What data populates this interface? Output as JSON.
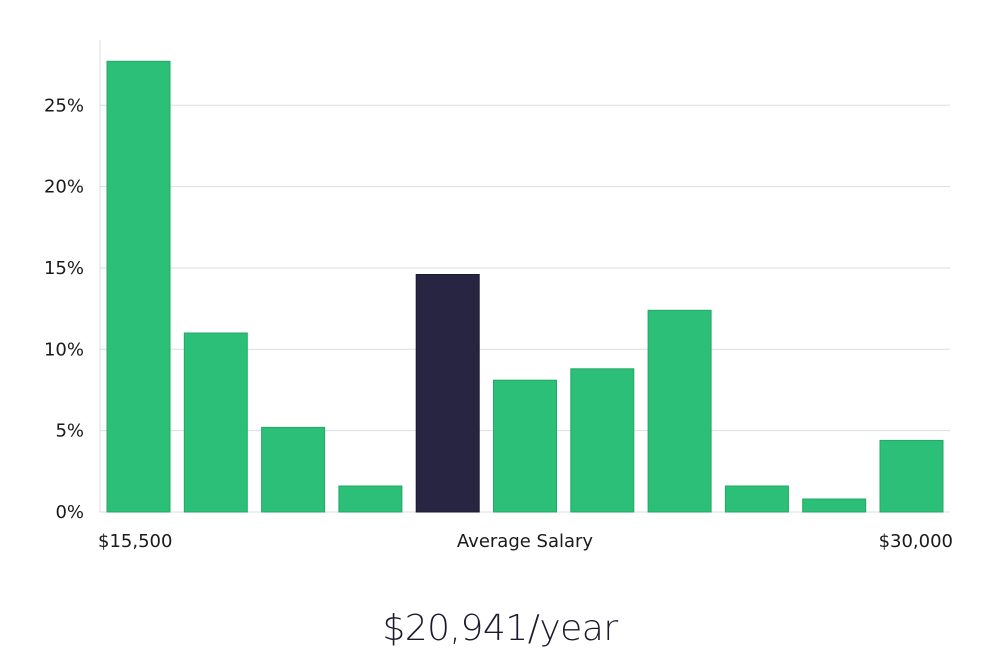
{
  "colors": {
    "bar": "#2bbf78",
    "bar_highlight": "#282543",
    "grid": "#dcdde3"
  },
  "chart_data": {
    "type": "bar",
    "categories": [
      "1",
      "2",
      "3",
      "4",
      "5",
      "6",
      "7",
      "8",
      "9",
      "10",
      "11"
    ],
    "values": [
      27.7,
      11.0,
      5.2,
      1.6,
      14.6,
      8.1,
      8.8,
      12.4,
      1.6,
      0.8,
      4.4
    ],
    "highlight_index": 4,
    "y_unit": "%",
    "ylim": [
      0,
      30
    ],
    "yticks": [
      0,
      5,
      10,
      15,
      20,
      25
    ],
    "ytick_labels": [
      "0%",
      "5%",
      "10%",
      "15%",
      "20%",
      "25%"
    ],
    "x_labels": {
      "left": "$15,500",
      "center": "Average Salary",
      "right": "$30,000"
    },
    "grid": true
  },
  "summary": {
    "salary": "$20,941/year"
  }
}
